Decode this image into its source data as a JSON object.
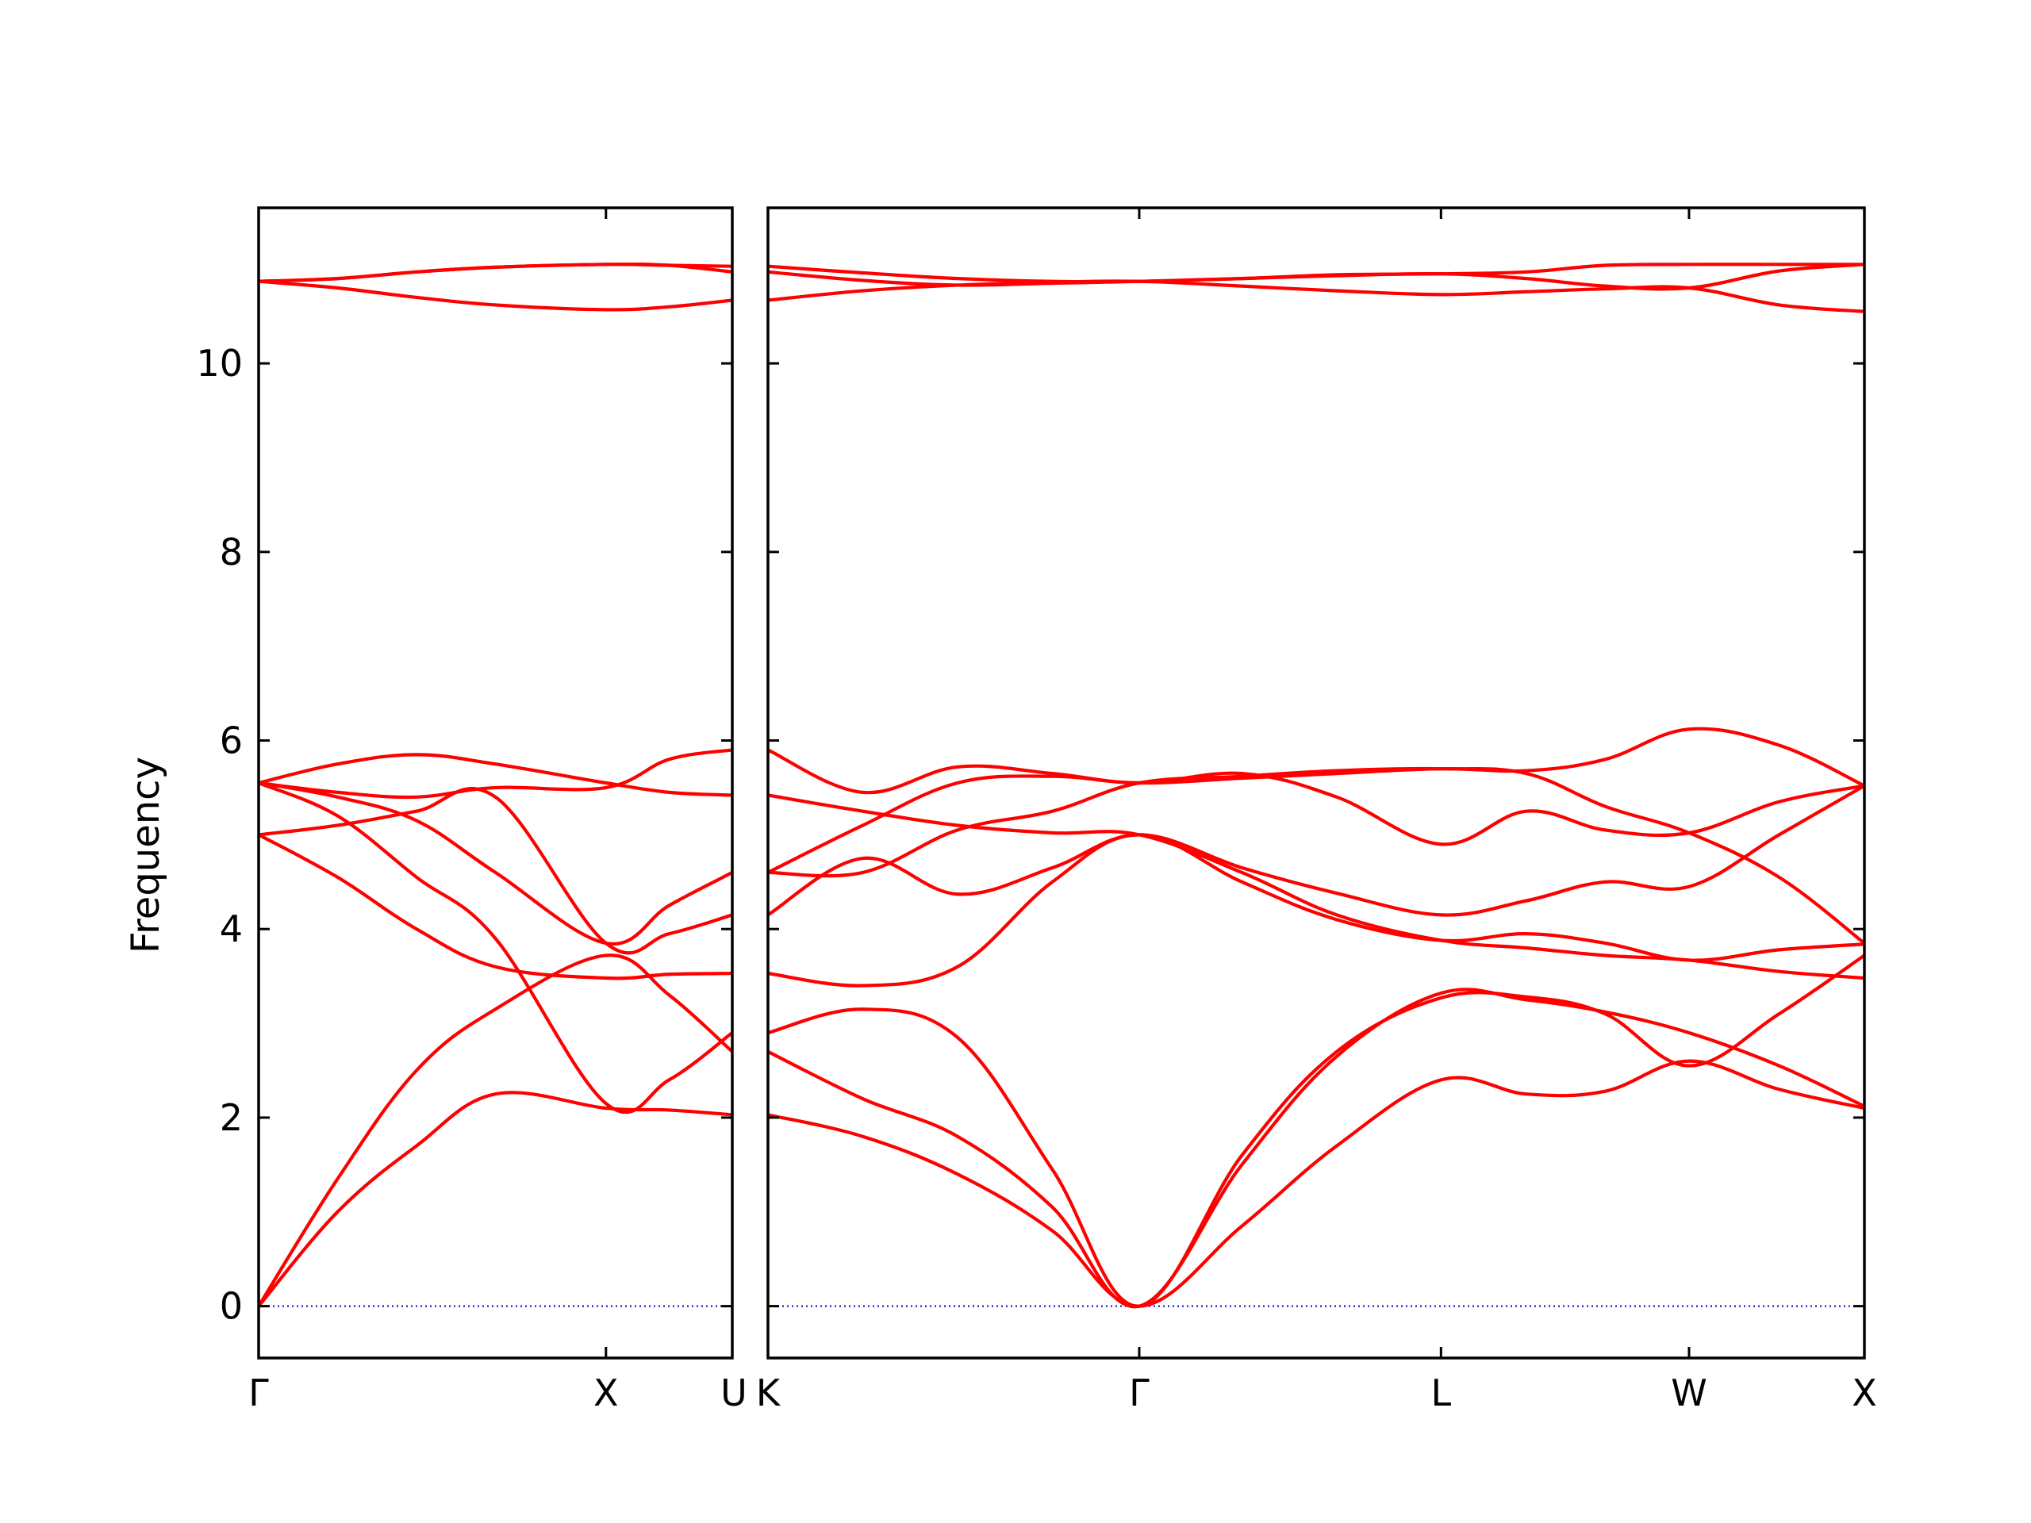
{
  "chart_data": {
    "type": "line",
    "ylabel": "Frequency",
    "xlabel": "",
    "ylim": [
      -0.55,
      11.65
    ],
    "yticks": [
      0,
      2,
      4,
      6,
      8,
      10
    ],
    "ytick_labels": [
      "0",
      "2",
      "4",
      "6",
      "8",
      "10"
    ],
    "band_color": "#ff0000",
    "zero_line_color": "#0000aa",
    "frame_color": "#000000",
    "panels": [
      {
        "xlim": [
          0,
          1.5
        ],
        "ticks": [
          {
            "x": 0,
            "label": "Γ"
          },
          {
            "x": 1.1,
            "label": "X"
          },
          {
            "x": 1.5,
            "label": "U"
          }
        ],
        "bands": [
          {
            "x": [
              0,
              0.25,
              0.5,
              0.75,
              1.1,
              1.3,
              1.5
            ],
            "y": [
              0,
              1.0,
              1.7,
              2.25,
              2.1,
              2.08,
              2.03
            ]
          },
          {
            "x": [
              0,
              0.25,
              0.5,
              0.75,
              1.1,
              1.3,
              1.5
            ],
            "y": [
              0,
              1.35,
              2.5,
              3.15,
              3.72,
              3.3,
              2.7
            ]
          },
          {
            "x": [
              0,
              0.25,
              0.5,
              0.75,
              1.1,
              1.3,
              1.5
            ],
            "y": [
              5.0,
              4.55,
              4.0,
              3.6,
              3.48,
              3.52,
              3.53
            ]
          },
          {
            "x": [
              0,
              0.25,
              0.5,
              0.75,
              1.1,
              1.3,
              1.5
            ],
            "y": [
              5.55,
              5.2,
              4.55,
              3.9,
              2.15,
              2.4,
              2.9
            ]
          },
          {
            "x": [
              0,
              0.25,
              0.5,
              0.75,
              1.1,
              1.3,
              1.5
            ],
            "y": [
              5.0,
              5.1,
              5.25,
              5.4,
              3.85,
              3.95,
              4.15
            ]
          },
          {
            "x": [
              0,
              0.25,
              0.5,
              0.75,
              1.1,
              1.3,
              1.5
            ],
            "y": [
              5.55,
              5.75,
              5.85,
              5.75,
              5.55,
              5.45,
              5.42
            ]
          },
          {
            "x": [
              0,
              0.25,
              0.5,
              0.75,
              1.1,
              1.3,
              1.5
            ],
            "y": [
              5.55,
              5.4,
              5.15,
              4.6,
              3.85,
              4.25,
              4.6
            ]
          },
          {
            "x": [
              0,
              0.25,
              0.5,
              0.75,
              1.1,
              1.3,
              1.5
            ],
            "y": [
              5.55,
              5.45,
              5.4,
              5.5,
              5.5,
              5.8,
              5.9
            ]
          },
          {
            "x": [
              0,
              0.25,
              0.5,
              0.75,
              1.1,
              1.3,
              1.5
            ],
            "y": [
              10.87,
              10.8,
              10.7,
              10.62,
              10.57,
              10.6,
              10.67
            ]
          },
          {
            "x": [
              0,
              0.25,
              0.5,
              0.75,
              1.1,
              1.3,
              1.5
            ],
            "y": [
              10.87,
              10.9,
              10.97,
              11.02,
              11.05,
              11.04,
              10.97
            ]
          },
          {
            "x": [
              0,
              0.25,
              0.5,
              0.75,
              1.1,
              1.3,
              1.5
            ],
            "y": [
              10.87,
              10.9,
              10.97,
              11.02,
              11.05,
              11.04,
              11.03
            ]
          }
        ]
      },
      {
        "xlim": [
          0,
          3.47
        ],
        "ticks": [
          {
            "x": 0,
            "label": "K"
          },
          {
            "x": 1.175,
            "label": "Γ"
          },
          {
            "x": 2.13,
            "label": "L"
          },
          {
            "x": 2.915,
            "label": "W"
          },
          {
            "x": 3.47,
            "label": "X"
          }
        ],
        "bands": [
          {
            "x": [
              0,
              0.3,
              0.6,
              0.9,
              1.175,
              1.5,
              1.8,
              2.13,
              2.4,
              2.65,
              2.915,
              3.2,
              3.47
            ],
            "y": [
              2.03,
              1.8,
              1.4,
              0.8,
              0,
              0.85,
              1.7,
              2.4,
              2.25,
              2.28,
              2.6,
              2.3,
              2.1
            ]
          },
          {
            "x": [
              0,
              0.3,
              0.6,
              0.9,
              1.175,
              1.5,
              1.8,
              2.13,
              2.4,
              2.65,
              2.915,
              3.2,
              3.47
            ],
            "y": [
              2.7,
              2.2,
              1.8,
              1.05,
              0,
              1.5,
              2.65,
              3.32,
              3.25,
              3.12,
              2.9,
              2.55,
              2.12
            ]
          },
          {
            "x": [
              0,
              0.3,
              0.6,
              0.9,
              1.175,
              1.5,
              1.8,
              2.13,
              2.4,
              2.65,
              2.915,
              3.2,
              3.47
            ],
            "y": [
              2.9,
              3.15,
              2.85,
              1.45,
              0,
              1.6,
              2.7,
              3.27,
              3.28,
              3.1,
              2.55,
              3.1,
              3.72
            ]
          },
          {
            "x": [
              0,
              0.3,
              0.6,
              0.9,
              1.175,
              1.5,
              1.8,
              2.13,
              2.4,
              2.65,
              2.915,
              3.2,
              3.47
            ],
            "y": [
              3.53,
              3.4,
              3.6,
              4.5,
              5.0,
              4.5,
              4.1,
              3.88,
              3.95,
              3.85,
              3.67,
              3.78,
              3.84
            ]
          },
          {
            "x": [
              0,
              0.3,
              0.6,
              0.9,
              1.175,
              1.5,
              1.8,
              2.13,
              2.4,
              2.65,
              2.915,
              3.2,
              3.47
            ],
            "y": [
              4.15,
              4.75,
              4.37,
              4.65,
              5.0,
              4.65,
              4.38,
              4.15,
              4.3,
              4.5,
              4.45,
              5.0,
              5.52
            ]
          },
          {
            "x": [
              0,
              0.3,
              0.6,
              0.9,
              1.175,
              1.5,
              1.8,
              2.13,
              2.4,
              2.65,
              2.915,
              3.2,
              3.47
            ],
            "y": [
              4.6,
              4.6,
              5.05,
              5.25,
              5.55,
              5.62,
              5.68,
              5.7,
              5.65,
              5.3,
              5.02,
              4.55,
              3.85
            ]
          },
          {
            "x": [
              0,
              0.3,
              0.6,
              0.9,
              1.175,
              1.5,
              1.8,
              2.13,
              2.4,
              2.65,
              2.915,
              3.2,
              3.47
            ],
            "y": [
              5.42,
              5.25,
              5.1,
              5.02,
              5.0,
              4.6,
              4.15,
              3.88,
              3.8,
              3.72,
              3.67,
              3.55,
              3.48
            ]
          },
          {
            "x": [
              0,
              0.3,
              0.6,
              0.9,
              1.175,
              1.5,
              1.8,
              2.13,
              2.4,
              2.65,
              2.915,
              3.2,
              3.47
            ],
            "y": [
              4.6,
              5.1,
              5.55,
              5.62,
              5.55,
              5.6,
              5.65,
              5.7,
              5.68,
              5.8,
              6.12,
              5.95,
              5.52
            ]
          },
          {
            "x": [
              0,
              0.3,
              0.6,
              0.9,
              1.175,
              1.5,
              1.8,
              2.13,
              2.4,
              2.65,
              2.915,
              3.2,
              3.47
            ],
            "y": [
              5.9,
              5.45,
              5.72,
              5.65,
              5.55,
              5.65,
              5.4,
              4.9,
              5.25,
              5.05,
              5.02,
              5.35,
              5.52
            ]
          },
          {
            "x": [
              0,
              0.3,
              0.6,
              0.9,
              1.175,
              1.5,
              1.8,
              2.13,
              2.4,
              2.65,
              2.915,
              3.2,
              3.47
            ],
            "y": [
              10.67,
              10.77,
              10.83,
              10.86,
              10.87,
              10.82,
              10.77,
              10.73,
              10.76,
              10.79,
              10.8,
              10.62,
              10.55
            ]
          },
          {
            "x": [
              0,
              0.3,
              0.6,
              0.9,
              1.175,
              1.5,
              1.8,
              2.13,
              2.4,
              2.65,
              2.915,
              3.2,
              3.47
            ],
            "y": [
              10.97,
              10.88,
              10.83,
              10.85,
              10.87,
              10.9,
              10.93,
              10.95,
              10.9,
              10.82,
              10.8,
              10.98,
              11.05
            ]
          },
          {
            "x": [
              0,
              0.3,
              0.6,
              0.9,
              1.175,
              1.5,
              1.8,
              2.13,
              2.4,
              2.65,
              2.915,
              3.2,
              3.47
            ],
            "y": [
              11.03,
              10.96,
              10.9,
              10.87,
              10.87,
              10.9,
              10.94,
              10.95,
              10.97,
              11.04,
              11.05,
              11.05,
              11.05
            ]
          }
        ]
      }
    ]
  }
}
